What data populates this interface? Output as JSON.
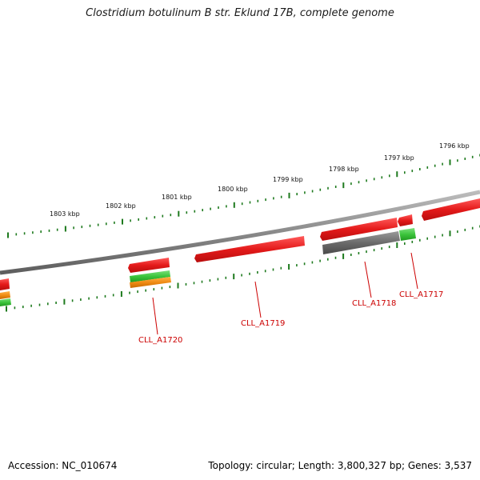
{
  "title": "Clostridium botulinum B str. Eklund 17B, complete genome",
  "footer": {
    "accession": "Accession: NC_010674",
    "stats": "Topology: circular; Length: 3,800,327 bp; Genes: 3,537"
  },
  "colors": {
    "backbone": "#8a8a8a",
    "tick": "#1e7a1e",
    "forward_gene": "#e41a1a",
    "gray_gene": "#6b6b6b",
    "green_gene": "#3cc43c",
    "orange_gene": "#f08c14",
    "label": "#cc0000"
  },
  "kbp_labels": [
    {
      "kbp": 1803,
      "text": "1803 kbp"
    },
    {
      "kbp": 1802,
      "text": "1802 kbp"
    },
    {
      "kbp": 1801,
      "text": "1801 kbp"
    },
    {
      "kbp": 1800,
      "text": "1800 kbp"
    },
    {
      "kbp": 1799,
      "text": "1799 kbp"
    },
    {
      "kbp": 1798,
      "text": "1798 kbp"
    },
    {
      "kbp": 1797,
      "text": "1797 kbp"
    },
    {
      "kbp": 1796,
      "text": "1796 kbp"
    }
  ],
  "gene_labels": [
    "CLL_A1720",
    "CLL_A1719",
    "CLL_A1718",
    "CLL_A1717"
  ]
}
